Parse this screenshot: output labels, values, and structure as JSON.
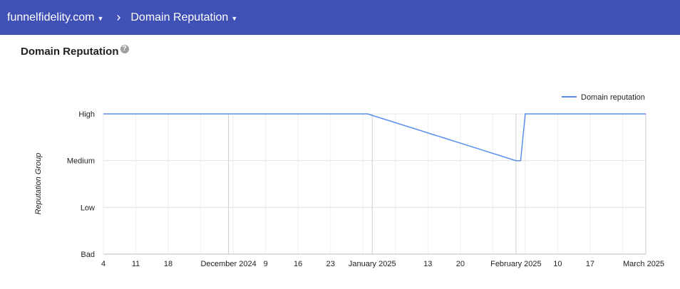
{
  "breadcrumb": {
    "domain": "funnelfidelity.com",
    "separator": "›",
    "page": "Domain Reputation"
  },
  "page": {
    "title": "Domain Reputation",
    "help_icon": "?"
  },
  "chart_data": {
    "type": "line",
    "ylabel": "Reputation Group",
    "y_categories": [
      "Bad",
      "Low",
      "Medium",
      "High"
    ],
    "x_ticks": [
      "4",
      "11",
      "18",
      "December 2024",
      "9",
      "16",
      "23",
      "January 2025",
      "13",
      "20",
      "February 2025",
      "10",
      "17",
      "March 2025"
    ],
    "legend": {
      "position": "top-right",
      "label": "Domain reputation"
    },
    "series": [
      {
        "name": "Domain reputation",
        "color": "#5b8def",
        "points": [
          {
            "date": "2024-11-04",
            "value": "High"
          },
          {
            "date": "2024-12-31",
            "value": "High"
          },
          {
            "date": "2025-02-01",
            "value": "Medium"
          },
          {
            "date": "2025-02-02",
            "value": "Medium"
          },
          {
            "date": "2025-02-03",
            "value": "High"
          },
          {
            "date": "2025-03-01",
            "value": "High"
          }
        ]
      }
    ]
  }
}
